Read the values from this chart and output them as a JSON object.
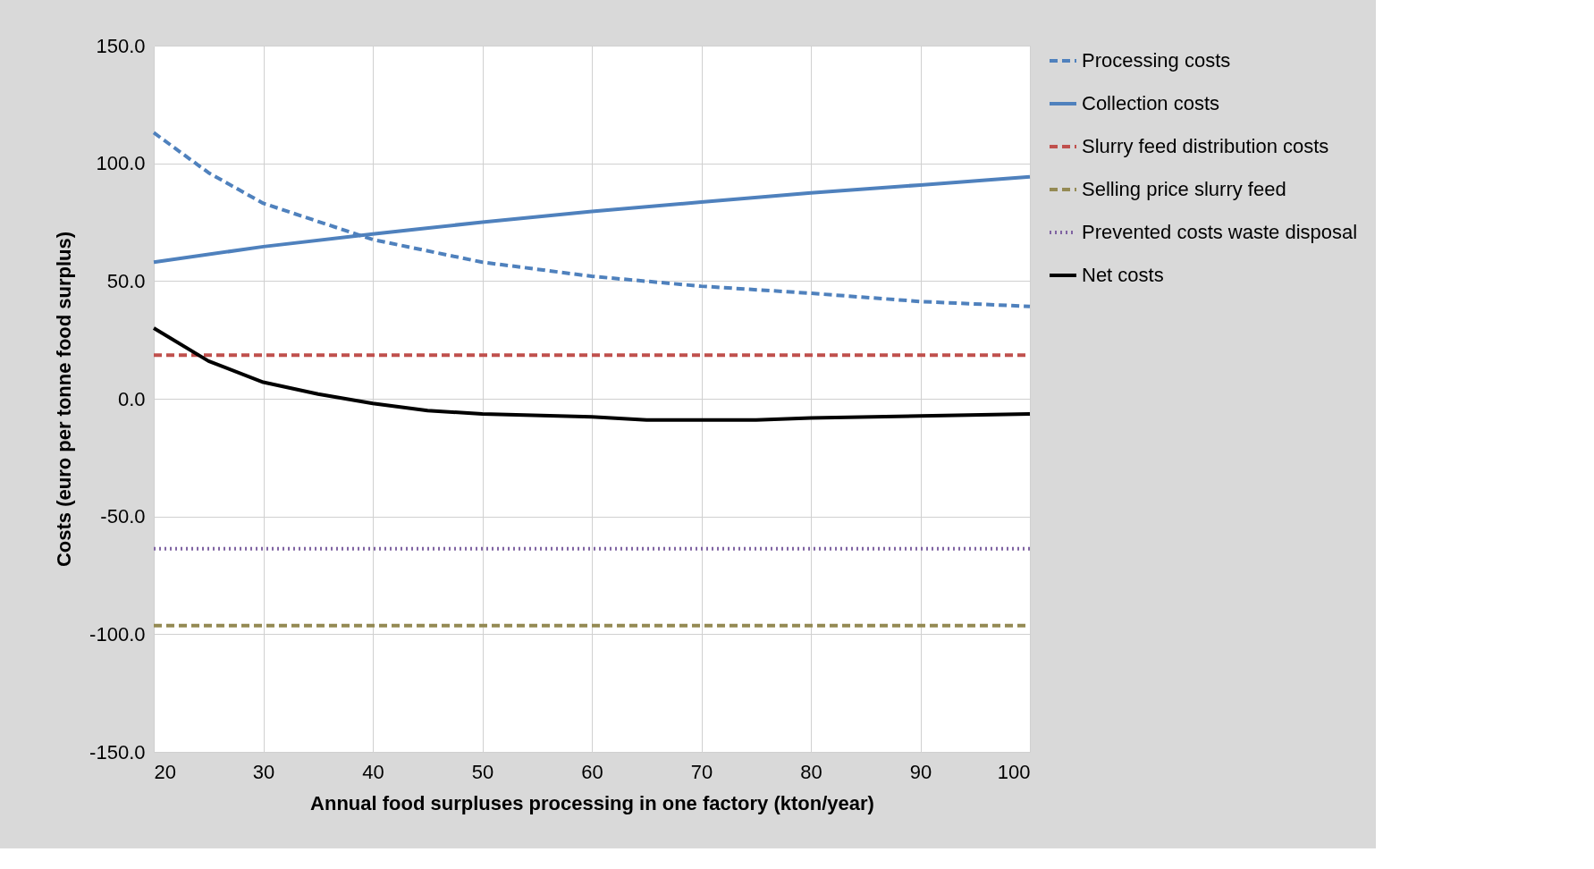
{
  "chart_data": {
    "type": "line",
    "xlabel": "Annual food surpluses processing in one factory (kton/year)",
    "ylabel": "Costs (euro per tonne food surplus)",
    "xlim": [
      20,
      100
    ],
    "xticks": [
      20,
      30,
      40,
      50,
      60,
      70,
      80,
      90,
      100
    ],
    "ylim": [
      -150,
      150
    ],
    "yticks": [
      {
        "value": -150,
        "label": "-150.0"
      },
      {
        "value": -100,
        "label": "-100.0"
      },
      {
        "value": -50,
        "label": "-50.0"
      },
      {
        "value": 0,
        "label": "0.0"
      },
      {
        "value": 50,
        "label": "50.0"
      },
      {
        "value": 100,
        "label": "100.0"
      },
      {
        "value": 150,
        "label": "150.0"
      }
    ],
    "grid": true,
    "legend": "right",
    "marker": "none",
    "series": [
      {
        "name": "Processing costs",
        "color": "#4f81bd",
        "line_style": "dashed",
        "x": [
          20,
          25,
          30,
          40,
          50,
          60,
          70,
          80,
          90,
          100
        ],
        "values": [
          113,
          96,
          83,
          67.6,
          58,
          52,
          47.8,
          44.8,
          41.3,
          39.2
        ]
      },
      {
        "name": "Collection costs",
        "color": "#4f81bd",
        "line_style": "solid",
        "x": [
          20,
          30,
          40,
          50,
          60,
          70,
          80,
          90,
          100
        ],
        "values": [
          58,
          64.6,
          70,
          75,
          79.6,
          83.5,
          87.4,
          90.8,
          94.3
        ]
      },
      {
        "name": "Slurry feed distribution costs",
        "color": "#c0504d",
        "line_style": "dashed",
        "x": [
          20,
          100
        ],
        "values": [
          18.5,
          18.5
        ]
      },
      {
        "name": "Selling price slurry feed",
        "color": "#948a54",
        "line_style": "dashed",
        "x": [
          20,
          100
        ],
        "values": [
          -96.4,
          -96.4
        ]
      },
      {
        "name": "Prevented costs waste disposal",
        "color": "#8064a2",
        "line_style": "dotted",
        "x": [
          20,
          100
        ],
        "values": [
          -63.7,
          -63.7
        ]
      },
      {
        "name": "Net costs",
        "color": "#000000",
        "line_style": "solid",
        "x": [
          20,
          25,
          30,
          35,
          40,
          45,
          50,
          60,
          65,
          70,
          75,
          80,
          90,
          100
        ],
        "values": [
          30,
          16,
          7,
          2,
          -2,
          -5,
          -6.5,
          -7.7,
          -9,
          -9,
          -9,
          -8.2,
          -7.3,
          -6.5
        ]
      }
    ]
  }
}
